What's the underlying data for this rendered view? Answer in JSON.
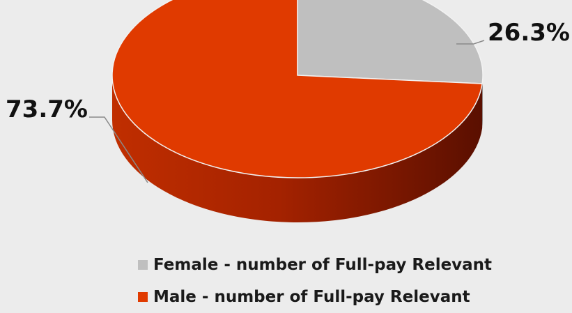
{
  "chart_data": {
    "type": "pie",
    "categories": [
      "Female - number of Full-pay Relevant",
      "Male - number of Full-pay Relevant"
    ],
    "values": [
      26.3,
      73.7
    ],
    "data_labels": [
      "26.3%",
      "73.7%"
    ],
    "colors": [
      "#bfbfbf",
      "#e03a00"
    ],
    "legend_position": "bottom",
    "style": "3d"
  }
}
